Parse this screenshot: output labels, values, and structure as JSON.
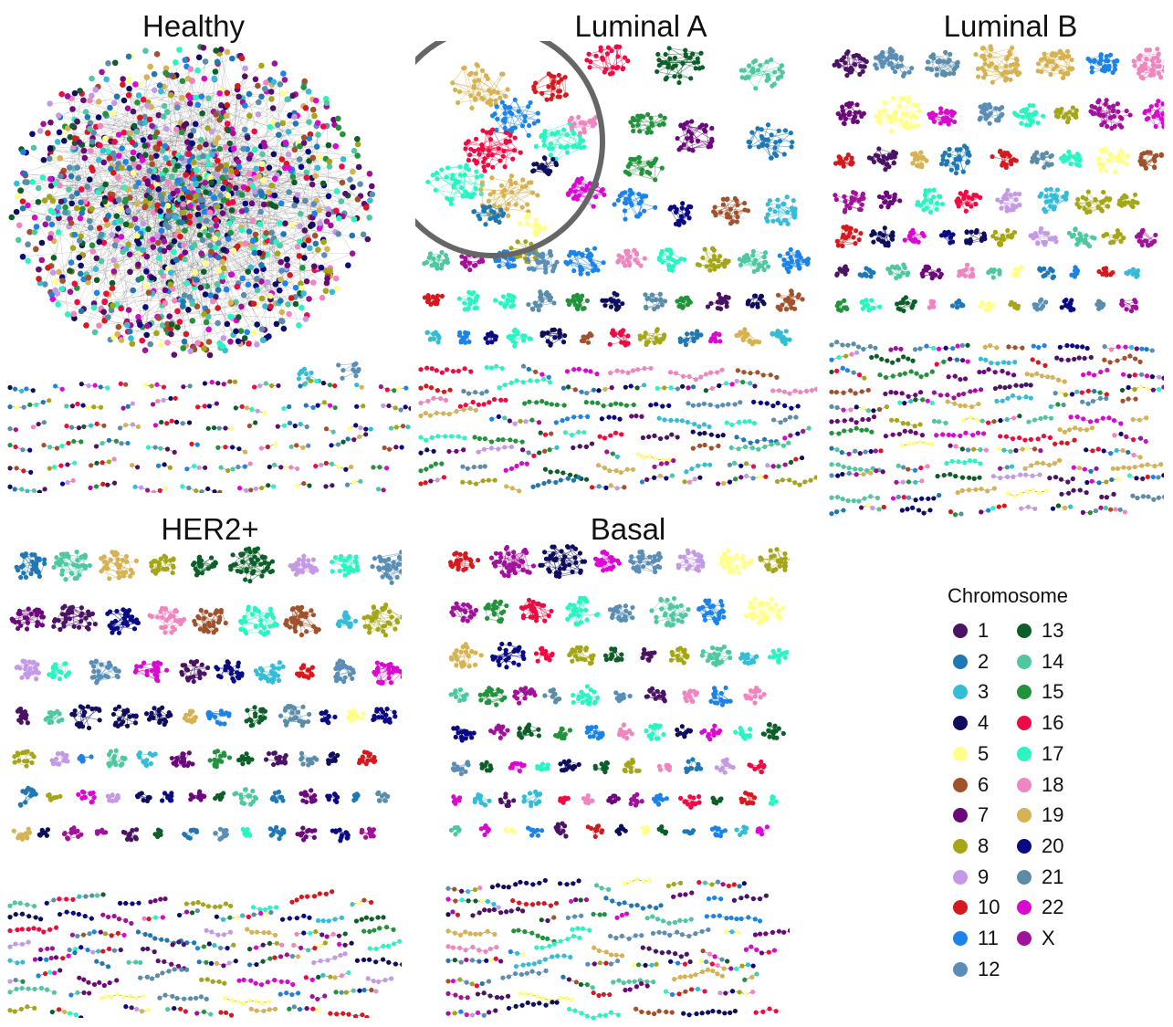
{
  "panels": [
    {
      "id": "healthy",
      "title": "Healthy"
    },
    {
      "id": "luminal_a",
      "title": "Luminal A"
    },
    {
      "id": "luminal_b",
      "title": "Luminal B"
    },
    {
      "id": "her2",
      "title": "HER2+"
    },
    {
      "id": "basal",
      "title": "Basal"
    }
  ],
  "legend": {
    "title": "Chromosome",
    "items": [
      {
        "label": "1",
        "color": "#4B1363"
      },
      {
        "label": "2",
        "color": "#1F78B4"
      },
      {
        "label": "3",
        "color": "#35BCD6"
      },
      {
        "label": "4",
        "color": "#0F0E5E"
      },
      {
        "label": "5",
        "color": "#FFFF8A"
      },
      {
        "label": "6",
        "color": "#A0522D"
      },
      {
        "label": "7",
        "color": "#6A0A7A"
      },
      {
        "label": "8",
        "color": "#A5A617"
      },
      {
        "label": "9",
        "color": "#C49AE6"
      },
      {
        "label": "10",
        "color": "#D51A1F"
      },
      {
        "label": "11",
        "color": "#1D83E6"
      },
      {
        "label": "12",
        "color": "#5A8EB6"
      },
      {
        "label": "13",
        "color": "#0E5E2A"
      },
      {
        "label": "14",
        "color": "#4FC7A0"
      },
      {
        "label": "15",
        "color": "#23923D"
      },
      {
        "label": "16",
        "color": "#EE0A43"
      },
      {
        "label": "17",
        "color": "#2AF5C2"
      },
      {
        "label": "18",
        "color": "#EF86BF"
      },
      {
        "label": "19",
        "color": "#D6B253"
      },
      {
        "label": "20",
        "color": "#0A0A85"
      },
      {
        "label": "21",
        "color": "#5B8CA8"
      },
      {
        "label": "22",
        "color": "#D90AD0"
      },
      {
        "label": "X",
        "color": "#A1129A"
      }
    ]
  },
  "highlight": {
    "panel": "luminal_a",
    "color": "#666666"
  }
}
